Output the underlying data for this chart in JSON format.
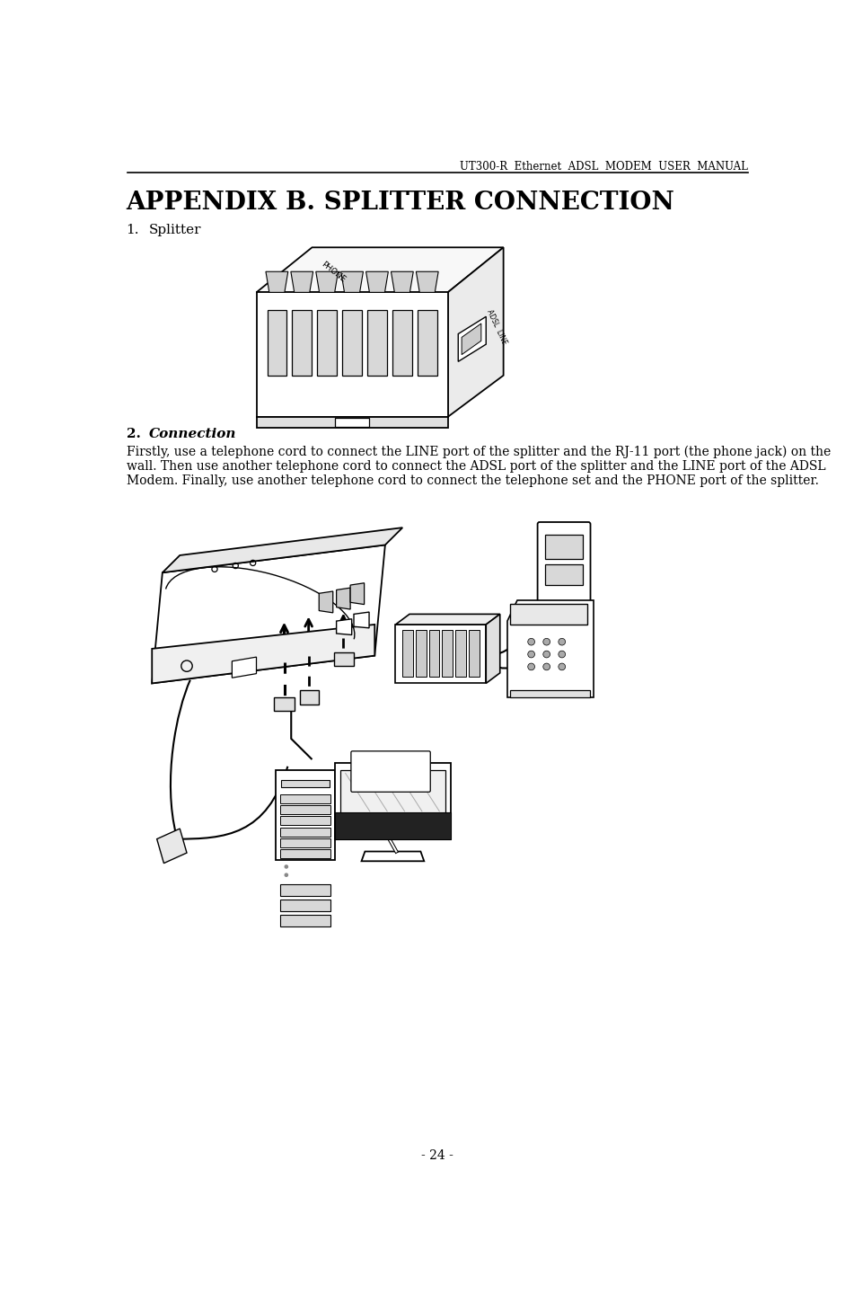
{
  "header_text": "UT300-R  Ethernet  ADSL  MODEM  USER  MANUAL",
  "title": "APPENDIX B. SPLITTER CONNECTION",
  "section1_label": "1.",
  "section1_title": "Splitter",
  "section2_label": "2.",
  "section2_title": "Connection",
  "body_line1": "Firstly, use a telephone cord to connect the LINE port of the splitter and the RJ-11 port (the phone jack) on the",
  "body_line2": "wall. Then use another telephone cord to connect the ADSL port of the splitter and the LINE port of the ADSL",
  "body_line3": "Modem. Finally, use another telephone cord to connect the telephone set and the PHONE port of the splitter.",
  "footer_text": "- 24 -",
  "bg_color": "#ffffff",
  "text_color": "#000000",
  "title_font_size": 20,
  "header_font_size": 8.5,
  "body_font_size": 10,
  "section_label_font_size": 11,
  "footer_font_size": 10
}
